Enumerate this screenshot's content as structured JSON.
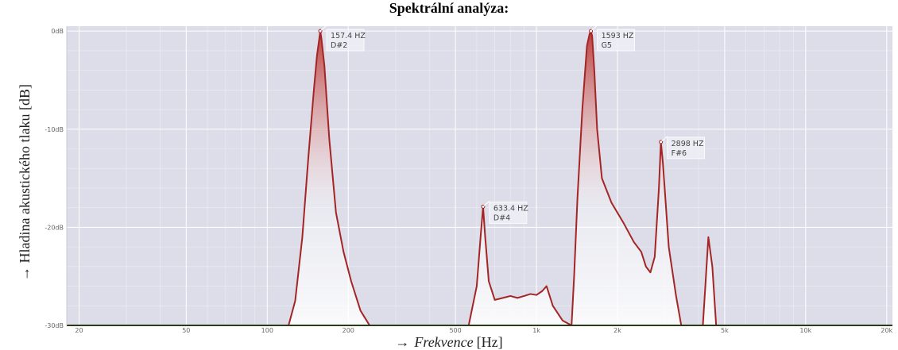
{
  "chart_data": {
    "type": "area",
    "title": "Spektrální analýza:",
    "ylabel_arrow": "→",
    "ylabel": "Hladina akustického tlaku [dB]",
    "xlabel_arrow": "→",
    "xlabel_name": "Frekvence",
    "xlabel_unit": "[Hz]",
    "x_scale": "log",
    "xlim": [
      18,
      21000
    ],
    "ylim": [
      -30,
      0.5
    ],
    "grid": true,
    "legend": "none",
    "x_ticks": [
      {
        "value": 20,
        "label": "20"
      },
      {
        "value": 50,
        "label": "50"
      },
      {
        "value": 100,
        "label": "100"
      },
      {
        "value": 200,
        "label": "200"
      },
      {
        "value": 500,
        "label": "500"
      },
      {
        "value": 1000,
        "label": "1k"
      },
      {
        "value": 2000,
        "label": "2k"
      },
      {
        "value": 5000,
        "label": "5k"
      },
      {
        "value": 10000,
        "label": "10k"
      },
      {
        "value": 20000,
        "label": "20k"
      }
    ],
    "y_ticks": [
      {
        "value": 0,
        "label": "0dB"
      },
      {
        "value": -10,
        "label": "-10dB"
      },
      {
        "value": -20,
        "label": "-20dB"
      },
      {
        "value": -30,
        "label": "-30dB"
      }
    ],
    "series": [
      {
        "x": [
          18,
          120,
          127,
          135,
          142,
          149,
          153,
          156,
          157.4,
          159,
          163,
          170,
          180,
          192,
          205,
          222,
          240,
          310,
          560,
          600,
          620,
          633.4,
          645,
          665,
          700,
          750,
          800,
          850,
          900,
          950,
          1000,
          1050,
          1090,
          1150,
          1250,
          1350,
          1380,
          1420,
          1480,
          1540,
          1575,
          1593,
          1610,
          1640,
          1680,
          1750,
          1900,
          2100,
          2300,
          2450,
          2550,
          2650,
          2750,
          2850,
          2898,
          2950,
          3100,
          3300,
          3450,
          3900,
          4150,
          4250,
          4350,
          4500,
          4650,
          4800,
          21000
        ],
        "y": [
          -30,
          -30,
          -27.5,
          -21,
          -13,
          -6,
          -2.5,
          -0.8,
          0,
          -0.8,
          -3.5,
          -11,
          -18.5,
          -22.5,
          -25.5,
          -28.5,
          -30,
          -30,
          -30,
          -26,
          -21,
          -17.9,
          -21,
          -25.5,
          -27.4,
          -27.2,
          -27,
          -27.2,
          -27,
          -26.8,
          -26.9,
          -26.5,
          -26,
          -28,
          -29.5,
          -30,
          -25,
          -17,
          -8,
          -1.5,
          -0.3,
          0,
          -0.5,
          -4,
          -10,
          -15,
          -17.5,
          -19.5,
          -21.5,
          -22.5,
          -24,
          -24.6,
          -23,
          -16,
          -11.3,
          -13.5,
          -22,
          -27,
          -30,
          -30,
          -30,
          -25.5,
          -21,
          -24,
          -30,
          -30,
          -30
        ]
      }
    ],
    "annotations": [
      {
        "x": 157.4,
        "y": 0,
        "freq": "157.4 HZ",
        "note": "D#2"
      },
      {
        "x": 633.4,
        "y": -17.9,
        "freq": "633.4 HZ",
        "note": "D#4"
      },
      {
        "x": 1593,
        "y": 0,
        "freq": "1593 HZ",
        "note": "G5"
      },
      {
        "x": 2898,
        "y": -11.3,
        "freq": "2898 HZ",
        "note": "F#6"
      }
    ]
  },
  "colors": {
    "plot_background": "#dcdde8",
    "grid_major": "#ffffff",
    "grid_minor": "#eceef5",
    "line": "#a32525",
    "fill_top": "#b82d2a",
    "fill_bottom": "#ffffff",
    "baseline": "#2b3a18",
    "annotation_box": "#eef0f6"
  }
}
